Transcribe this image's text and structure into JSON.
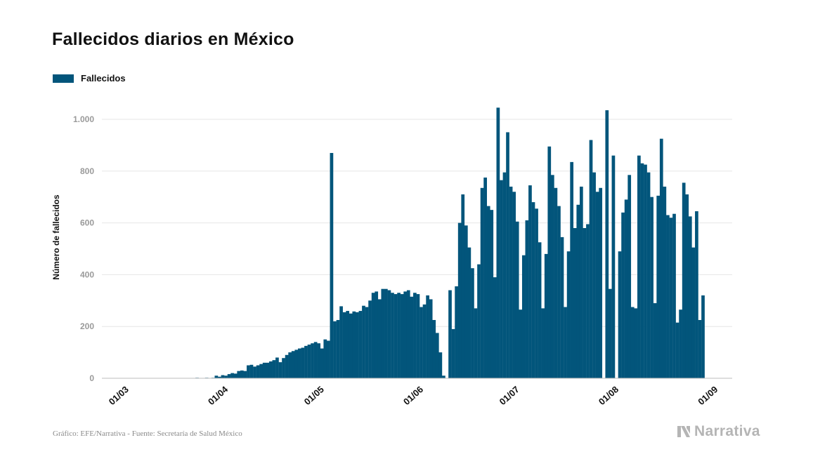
{
  "title": "Fallecidos diarios en México",
  "legend": {
    "label": "Fallecidos",
    "color": "#02557b"
  },
  "source": "Gráfico: EFE/Narrativa - Fuente: Secretaría de Salud México",
  "brand": "Narrativa",
  "chart_data": {
    "type": "bar",
    "title": "Fallecidos diarios en México",
    "ylabel": "Número de fallecidos",
    "xlabel": "",
    "ylim": [
      0,
      1100
    ],
    "yticks": [
      0,
      200,
      400,
      600,
      800,
      1000
    ],
    "ytick_labels": [
      "0",
      "200",
      "400",
      "600",
      "800",
      "1.000"
    ],
    "x_tick_labels": [
      "01/03",
      "01/04",
      "01/05",
      "01/06",
      "01/07",
      "01/08",
      "01/09"
    ],
    "grid": true,
    "legend_position": "top-left",
    "series": [
      {
        "name": "Fallecidos",
        "color": "#02557b",
        "start_date": "2020-02-23",
        "values": [
          0,
          0,
          0,
          0,
          0,
          0,
          0,
          0,
          0,
          0,
          0,
          0,
          0,
          0,
          0,
          0,
          0,
          0,
          0,
          0,
          0,
          0,
          0,
          0,
          0,
          0,
          0,
          1,
          0,
          2,
          0,
          1,
          2,
          1,
          2,
          10,
          6,
          12,
          10,
          16,
          20,
          18,
          28,
          30,
          28,
          50,
          52,
          45,
          50,
          55,
          60,
          60,
          65,
          70,
          80,
          62,
          78,
          90,
          100,
          105,
          110,
          115,
          118,
          125,
          130,
          135,
          140,
          135,
          115,
          150,
          145,
          870,
          220,
          225,
          278,
          255,
          260,
          250,
          258,
          255,
          260,
          280,
          275,
          300,
          330,
          335,
          305,
          345,
          345,
          340,
          330,
          325,
          330,
          325,
          335,
          340,
          315,
          330,
          325,
          275,
          285,
          320,
          305,
          225,
          175,
          100,
          10,
          0,
          340,
          190,
          355,
          600,
          710,
          590,
          505,
          425,
          270,
          440,
          735,
          775,
          665,
          650,
          390,
          1045,
          765,
          795,
          950,
          740,
          720,
          605,
          265,
          475,
          610,
          745,
          680,
          655,
          525,
          270,
          480,
          895,
          785,
          735,
          665,
          545,
          275,
          490,
          835,
          580,
          670,
          740,
          580,
          595,
          920,
          795,
          720,
          735,
          0,
          1035,
          345,
          860,
          0,
          490,
          640,
          690,
          785,
          275,
          270,
          860,
          830,
          825,
          795,
          700,
          290,
          705,
          925,
          740,
          630,
          620,
          635,
          215,
          265,
          755,
          710,
          625,
          505,
          645,
          225,
          320
        ]
      }
    ]
  }
}
